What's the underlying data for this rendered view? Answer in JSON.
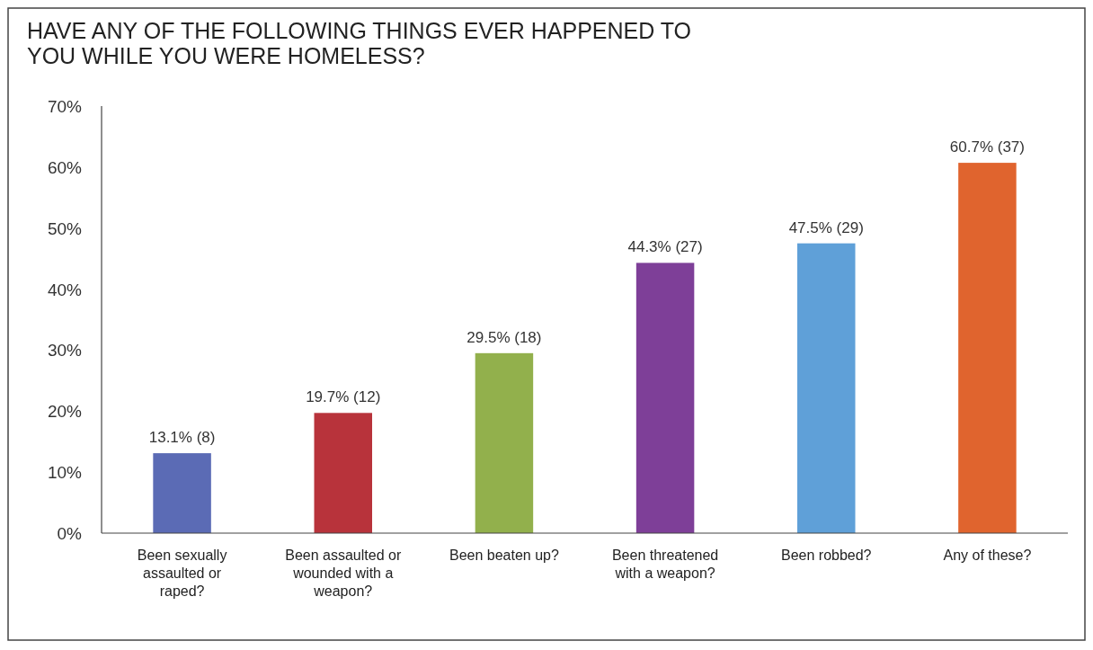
{
  "chart_data": {
    "type": "bar",
    "title": "HAVE ANY OF THE FOLLOWING THINGS EVER HAPPENED TO YOU WHILE YOU WERE HOMELESS?",
    "categories": [
      "Been sexually assaulted or raped?",
      "Been assaulted or wounded with a weapon?",
      "Been beaten up?",
      "Been threatened with a weapon?",
      "Been robbed?",
      "Any of these?"
    ],
    "values": [
      13.1,
      19.7,
      29.5,
      44.3,
      47.5,
      60.7
    ],
    "colors": [
      "#5b6bb5",
      "#b8333b",
      "#92b04c",
      "#7e3f98",
      "#5fa0d8",
      "#e0642e"
    ],
    "value_labels": [
      "13.1% (8)",
      "19.7% (12)",
      "29.5% (18)",
      "44.3% (27)",
      "47.5% (29)",
      "60.7% (37)"
    ],
    "ylim": [
      0,
      70
    ],
    "yticks": [
      {
        "value": 0,
        "label": "0%"
      },
      {
        "value": 10,
        "label": "10%"
      },
      {
        "value": 20,
        "label": "20%"
      },
      {
        "value": 30,
        "label": "30%"
      },
      {
        "value": 40,
        "label": "40%"
      },
      {
        "value": 50,
        "label": "50%"
      },
      {
        "value": 60,
        "label": "60%"
      },
      {
        "value": 70,
        "label": "70%"
      }
    ],
    "grid": false
  }
}
